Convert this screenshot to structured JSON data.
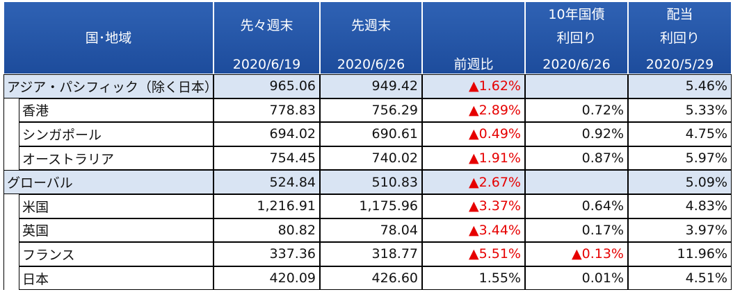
{
  "table": {
    "header": [
      {
        "lines": [
          "国･地域"
        ],
        "place": "middle"
      },
      {
        "lines": [
          "先々週末",
          "2020/6/19"
        ],
        "place": "split"
      },
      {
        "lines": [
          "先週末",
          "2020/6/26"
        ],
        "place": "split"
      },
      {
        "lines": [
          "前週比"
        ],
        "place": "bottom"
      },
      {
        "lines": [
          "10年国債",
          "利回り",
          "2020/6/26"
        ],
        "place": "three"
      },
      {
        "lines": [
          "配当",
          "利回り",
          "2020/5/29"
        ],
        "place": "three"
      }
    ],
    "red_color": "#e60000",
    "rows": [
      {
        "label": "アジア・パシフィック（除く日本）",
        "group": true,
        "cells": [
          "965.06",
          "949.42",
          "▲1.62%",
          "",
          "5.46%"
        ],
        "red": [
          2
        ]
      },
      {
        "label": "香港",
        "group": false,
        "cells": [
          "778.83",
          "756.29",
          "▲2.89%",
          "0.72%",
          "5.33%"
        ],
        "red": [
          2
        ]
      },
      {
        "label": "シンガポール",
        "group": false,
        "cells": [
          "694.02",
          "690.61",
          "▲0.49%",
          "0.92%",
          "4.75%"
        ],
        "red": [
          2
        ]
      },
      {
        "label": "オーストラリア",
        "group": false,
        "cells": [
          "754.45",
          "740.02",
          "▲1.91%",
          "0.87%",
          "5.97%"
        ],
        "red": [
          2
        ]
      },
      {
        "label": "グローバル",
        "group": true,
        "cells": [
          "524.84",
          "510.83",
          "▲2.67%",
          "",
          "5.09%"
        ],
        "red": [
          2
        ]
      },
      {
        "label": "米国",
        "group": false,
        "cells": [
          "1,216.91",
          "1,175.96",
          "▲3.37%",
          "0.64%",
          "4.83%"
        ],
        "red": [
          2
        ]
      },
      {
        "label": "英国",
        "group": false,
        "cells": [
          "80.82",
          "78.04",
          "▲3.44%",
          "0.17%",
          "3.97%"
        ],
        "red": [
          2
        ]
      },
      {
        "label": "フランス",
        "group": false,
        "cells": [
          "337.36",
          "318.77",
          "▲5.51%",
          "▲0.13%",
          "11.96%"
        ],
        "red": [
          2,
          3
        ]
      },
      {
        "label": "日本",
        "group": false,
        "cells": [
          "420.09",
          "426.60",
          "1.55%",
          "0.01%",
          "4.51%"
        ],
        "red": []
      }
    ]
  }
}
